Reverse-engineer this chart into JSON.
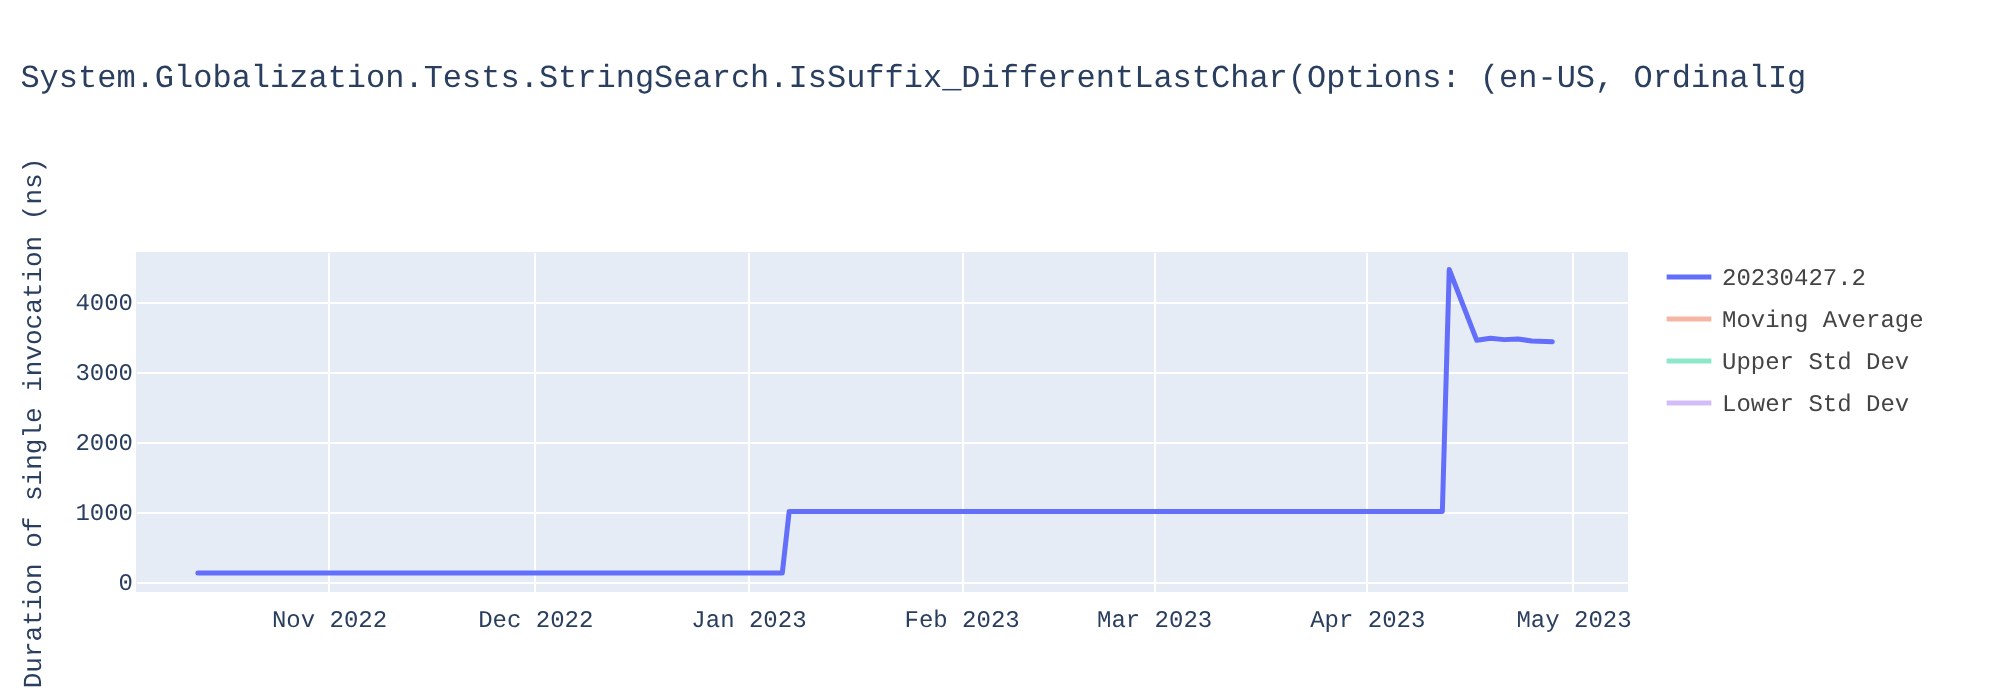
{
  "chart_data": {
    "type": "line",
    "title": "System.Globalization.Tests.StringSearch.IsSuffix_DifferentLastChar(Options: (en-US, OrdinalIg",
    "ylabel": "Duration of single invocation (ns)",
    "x": [
      "2022-10-13",
      "2022-10-25",
      "2022-11-10",
      "2022-11-25",
      "2022-12-10",
      "2022-12-25",
      "2023-01-06",
      "2023-01-07",
      "2023-01-20",
      "2023-02-05",
      "2023-02-20",
      "2023-03-05",
      "2023-03-20",
      "2023-04-01",
      "2023-04-12",
      "2023-04-13",
      "2023-04-17",
      "2023-04-19",
      "2023-04-21",
      "2023-04-23",
      "2023-04-25",
      "2023-04-28"
    ],
    "series": [
      {
        "name": "20230427.2",
        "color": "#636efa",
        "values": [
          120,
          120,
          120,
          120,
          120,
          120,
          120,
          1000,
          1000,
          1000,
          1000,
          1000,
          1000,
          1000,
          1000,
          4450,
          3440,
          3470,
          3450,
          3460,
          3430,
          3420
        ]
      },
      {
        "name": "Moving Average",
        "color": "#f7b5a4",
        "values": [
          null,
          null,
          null,
          null,
          null,
          null,
          null,
          null,
          null,
          null,
          null,
          null,
          null,
          null,
          null,
          null,
          null,
          null,
          null,
          null,
          null,
          null
        ]
      },
      {
        "name": "Upper Std Dev",
        "color": "#8de8c8",
        "values": [
          null,
          null,
          null,
          null,
          null,
          null,
          null,
          null,
          null,
          null,
          null,
          null,
          null,
          null,
          null,
          null,
          null,
          null,
          null,
          null,
          null,
          null
        ]
      },
      {
        "name": "Lower Std Dev",
        "color": "#d3bdf7",
        "values": [
          null,
          null,
          null,
          null,
          null,
          null,
          null,
          null,
          null,
          null,
          null,
          null,
          null,
          null,
          null,
          null,
          null,
          null,
          null,
          null,
          null,
          null
        ]
      }
    ],
    "xlim": [
      "2022-10-04",
      "2023-05-09"
    ],
    "xticks": [
      {
        "value": "2022-11-01",
        "label": "Nov 2022"
      },
      {
        "value": "2022-12-01",
        "label": "Dec 2022"
      },
      {
        "value": "2023-01-01",
        "label": "Jan 2023"
      },
      {
        "value": "2023-02-01",
        "label": "Feb 2023"
      },
      {
        "value": "2023-03-01",
        "label": "Mar 2023"
      },
      {
        "value": "2023-04-01",
        "label": "Apr 2023"
      },
      {
        "value": "2023-05-01",
        "label": "May 2023"
      }
    ],
    "ylim": [
      -150,
      4700
    ],
    "yticks": [
      0,
      1000,
      2000,
      3000,
      4000
    ],
    "grid": true,
    "legend": "top right"
  }
}
